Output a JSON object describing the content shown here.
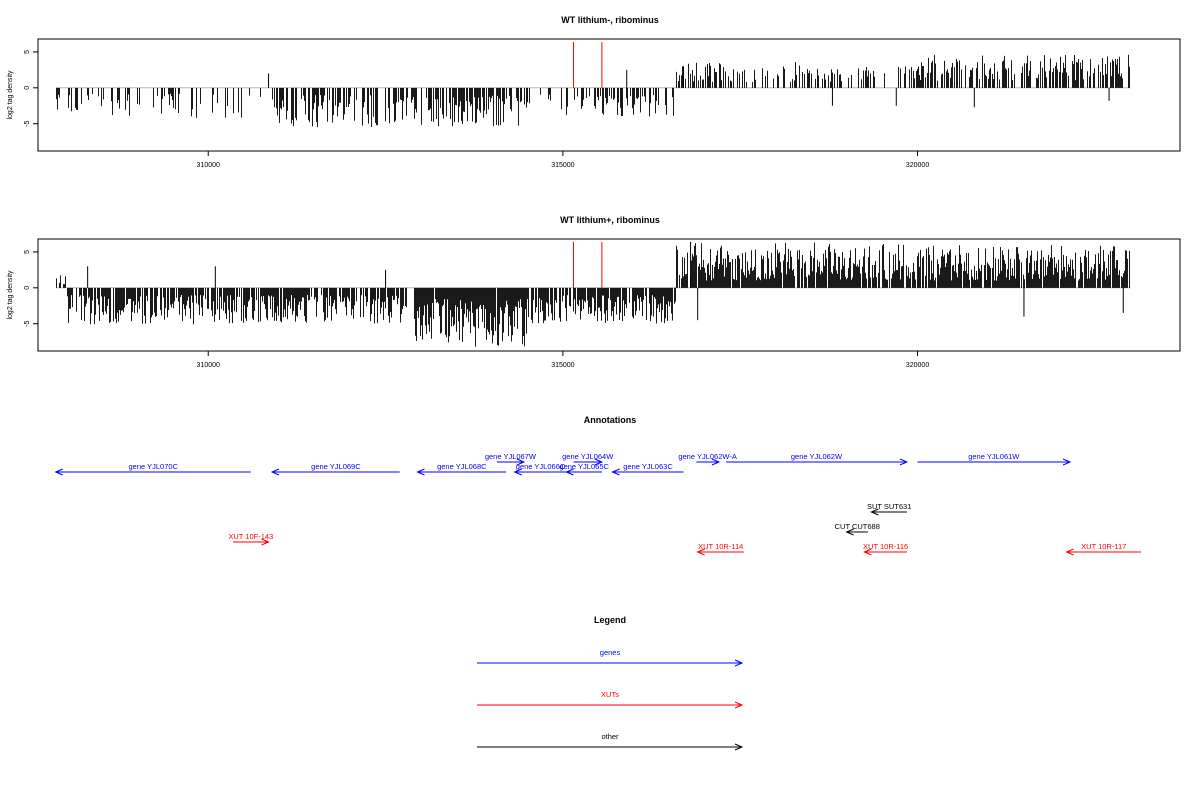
{
  "colors": {
    "genes": "#0000ff",
    "xuts": "#ff0000",
    "other": "#000000",
    "signal": "#000000",
    "marker": "#ff0000"
  },
  "chart_data": [
    {
      "type": "bar",
      "title": "WT lithium-, ribominus",
      "ylabel": "log2 tag density",
      "xlim": [
        307600,
        323700
      ],
      "ylim": [
        -8.8,
        6.8
      ],
      "xticks": [
        310000,
        315000,
        320000
      ],
      "xtick_labels": [
        "310000",
        "315000",
        "320000"
      ],
      "yticks": [
        5,
        0,
        -5
      ],
      "ytick_labels": [
        "5",
        "0",
        "-5"
      ],
      "signal_range": [
        307850,
        323000
      ],
      "red_markers": [
        315150,
        315550
      ],
      "segments": [
        {
          "start": 307850,
          "end": 308600,
          "min": -3.5,
          "max": -0.8,
          "density": 0.25
        },
        {
          "start": 308600,
          "end": 310800,
          "min": -4.2,
          "max": -0.8,
          "density": 0.25
        },
        {
          "start": 310850,
          "end": 312900,
          "min": -5.5,
          "max": -1.0,
          "density": 0.55
        },
        {
          "start": 312900,
          "end": 314500,
          "min": -5.5,
          "max": -1.0,
          "density": 0.6
        },
        {
          "start": 314500,
          "end": 315000,
          "min": -3.0,
          "max": -0.8,
          "density": 0.2
        },
        {
          "start": 315000,
          "end": 316600,
          "min": -4.0,
          "max": -1.0,
          "density": 0.45
        },
        {
          "start": 316600,
          "end": 317300,
          "min": 0.8,
          "max": 3.5,
          "density": 0.6
        },
        {
          "start": 317300,
          "end": 318600,
          "min": 0.8,
          "max": 3.6,
          "density": 0.4
        },
        {
          "start": 318600,
          "end": 320000,
          "min": 0.8,
          "max": 3.0,
          "density": 0.35
        },
        {
          "start": 320000,
          "end": 323000,
          "min": 1.0,
          "max": 4.6,
          "density": 0.6
        }
      ],
      "spikes": [
        [
          310850,
          2.0
        ],
        [
          314500,
          -2.0
        ],
        [
          315900,
          2.5
        ],
        [
          316700,
          3.0
        ],
        [
          318800,
          -2.5
        ],
        [
          319700,
          -2.5
        ],
        [
          320800,
          -2.7
        ],
        [
          322700,
          -1.8
        ]
      ]
    },
    {
      "type": "bar",
      "title": "WT lithium+, ribominus",
      "ylabel": "log2 tag density",
      "xlim": [
        307600,
        323700
      ],
      "ylim": [
        -8.8,
        6.8
      ],
      "xticks": [
        310000,
        315000,
        320000
      ],
      "xtick_labels": [
        "310000",
        "315000",
        "320000"
      ],
      "yticks": [
        5,
        0,
        -5
      ],
      "ytick_labels": [
        "5",
        "0",
        "-5"
      ],
      "signal_range": [
        307850,
        323000
      ],
      "red_markers": [
        315150,
        315550
      ],
      "segments": [
        {
          "start": 307850,
          "end": 308000,
          "min": 0.5,
          "max": 1.8,
          "density": 0.5
        },
        {
          "start": 308000,
          "end": 310800,
          "min": -5.2,
          "max": -1.0,
          "density": 0.8
        },
        {
          "start": 310800,
          "end": 312800,
          "min": -5.0,
          "max": -1.0,
          "density": 0.8
        },
        {
          "start": 312900,
          "end": 314500,
          "min": -8.3,
          "max": -1.5,
          "density": 0.95
        },
        {
          "start": 314500,
          "end": 316600,
          "min": -5.0,
          "max": -1.0,
          "density": 0.8
        },
        {
          "start": 316600,
          "end": 320000,
          "min": 1.0,
          "max": 6.3,
          "density": 0.9
        },
        {
          "start": 320000,
          "end": 323000,
          "min": 1.0,
          "max": 6.0,
          "density": 0.9
        }
      ],
      "spikes": [
        [
          308300,
          3.0
        ],
        [
          310100,
          3.0
        ],
        [
          312500,
          2.5
        ],
        [
          316800,
          6.4
        ],
        [
          316900,
          -4.5
        ],
        [
          321500,
          -4.0
        ],
        [
          322900,
          -3.5
        ]
      ]
    },
    {
      "type": "table",
      "title": "Annotations",
      "xlim": [
        307600,
        323700
      ],
      "features": [
        {
          "label": "gene YJL070C",
          "start": 307850,
          "end": 310600,
          "strand": "-",
          "kind": "gene",
          "row": 4
        },
        {
          "label": "gene YJL069C",
          "start": 310900,
          "end": 312700,
          "strand": "-",
          "kind": "gene",
          "row": 4
        },
        {
          "label": "gene YJL068C",
          "start": 312950,
          "end": 314200,
          "strand": "-",
          "kind": "gene",
          "row": 4
        },
        {
          "label": "gene YJL067W",
          "start": 314070,
          "end": 314450,
          "strand": "+",
          "kind": "gene",
          "row": 3
        },
        {
          "label": "gene YJL066C",
          "start": 314320,
          "end": 315050,
          "strand": "-",
          "kind": "gene",
          "row": 4
        },
        {
          "label": "gene YJL064W",
          "start": 315150,
          "end": 315550,
          "strand": "+",
          "kind": "gene",
          "row": 3
        },
        {
          "label": "gene YJL065C",
          "start": 315050,
          "end": 315550,
          "strand": "-",
          "kind": "gene",
          "row": 4
        },
        {
          "label": "gene YJL063C",
          "start": 315700,
          "end": 316700,
          "strand": "-",
          "kind": "gene",
          "row": 4
        },
        {
          "label": "gene YJL062W-A",
          "start": 316880,
          "end": 317200,
          "strand": "+",
          "kind": "gene",
          "row": 3
        },
        {
          "label": "gene YJL062W",
          "start": 317300,
          "end": 319850,
          "strand": "+",
          "kind": "gene",
          "row": 3
        },
        {
          "label": "gene YJL061W",
          "start": 320000,
          "end": 322150,
          "strand": "+",
          "kind": "gene",
          "row": 3
        },
        {
          "label": "SUT SUT631",
          "start": 319350,
          "end": 319850,
          "strand": "-",
          "kind": "other",
          "row": 8
        },
        {
          "label": "CUT CUT688",
          "start": 319000,
          "end": 319300,
          "strand": "-",
          "kind": "other",
          "row": 10
        },
        {
          "label": "XUT 10F-143",
          "start": 310350,
          "end": 310850,
          "strand": "+",
          "kind": "xut",
          "row": 11
        },
        {
          "label": "XUT 10R-114",
          "start": 316900,
          "end": 317550,
          "strand": "-",
          "kind": "xut",
          "row": 12
        },
        {
          "label": "XUT 10R-116",
          "start": 319250,
          "end": 319850,
          "strand": "-",
          "kind": "xut",
          "row": 12
        },
        {
          "label": "XUT 10R-117",
          "start": 322100,
          "end": 323150,
          "strand": "-",
          "kind": "xut",
          "row": 12
        }
      ]
    },
    {
      "type": "table",
      "title": "Legend",
      "entries": [
        {
          "label": "genes",
          "kind": "gene"
        },
        {
          "label": "XUTs",
          "kind": "xut"
        },
        {
          "label": "other",
          "kind": "other"
        }
      ]
    }
  ]
}
